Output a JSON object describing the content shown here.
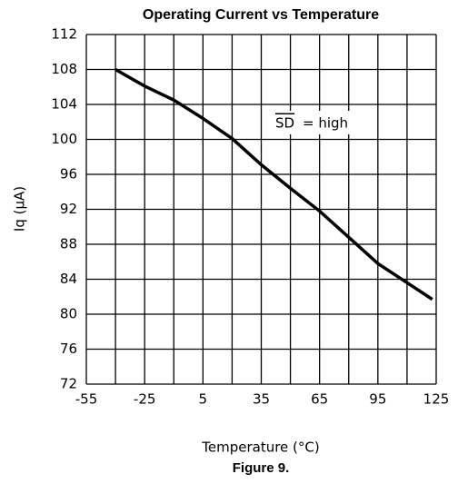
{
  "chart_data": {
    "type": "line",
    "title": "Operating Current vs Temperature",
    "x_label": "Temperature (°C)",
    "y_label": "Iq (µA)",
    "caption": "Figure 9.",
    "annotation": {
      "overlined": "SD",
      "text": "= high"
    },
    "series": [
      {
        "name": "Iq",
        "color": "#000000",
        "x": [
          -40,
          -25,
          -10,
          5,
          20,
          35,
          50,
          65,
          80,
          95,
          110,
          123
        ],
        "values": [
          108,
          106.1,
          104.5,
          102.4,
          100.1,
          97.1,
          94.4,
          91.8,
          88.8,
          85.8,
          83.6,
          81.7
        ]
      }
    ],
    "xlim": [
      -55,
      125
    ],
    "xticks": [
      -55,
      -25,
      5,
      35,
      65,
      95,
      125
    ],
    "xminorticks": [
      -40,
      -10,
      20,
      50,
      80,
      110
    ],
    "ylim": [
      72,
      112
    ],
    "yticks": [
      72,
      76,
      80,
      84,
      88,
      92,
      96,
      100,
      104,
      108,
      112
    ],
    "grid": true
  }
}
